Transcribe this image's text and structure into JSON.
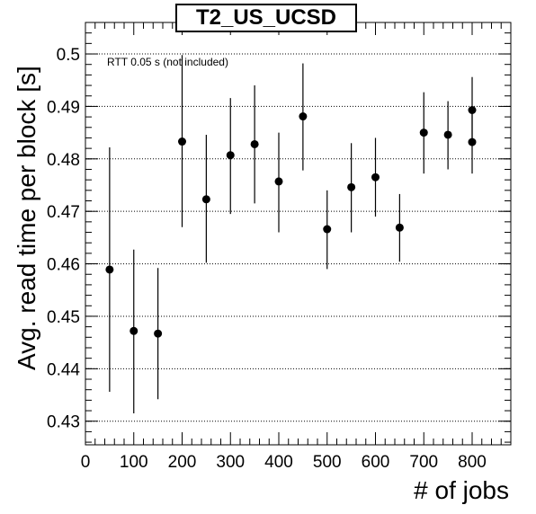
{
  "chart_data": {
    "type": "scatter",
    "title": "T2_US_UCSD",
    "xlabel": "# of jobs",
    "ylabel": "Avg. read time per block [s]",
    "annotation": "RTT 0.05 s (not included)",
    "xlim": [
      0,
      880
    ],
    "ylim": [
      0.4255,
      0.506
    ],
    "xticks": [
      0,
      100,
      200,
      300,
      400,
      500,
      600,
      700,
      800
    ],
    "yticks": [
      0.43,
      0.44,
      0.45,
      0.46,
      0.47,
      0.48,
      0.49,
      0.5
    ],
    "ytick_labels": [
      "0.43",
      "0.44",
      "0.45",
      "0.46",
      "0.47",
      "0.48",
      "0.49",
      "0.5"
    ],
    "grid": "horizontal dotted",
    "series": [
      {
        "x": [
          50,
          100,
          150,
          200,
          250,
          300,
          350,
          400,
          450,
          500,
          550,
          600,
          650,
          700,
          750,
          800,
          800
        ],
        "y": [
          0.4589,
          0.4472,
          0.4467,
          0.4833,
          0.4723,
          0.4807,
          0.4828,
          0.4757,
          0.4881,
          0.4666,
          0.4746,
          0.4765,
          0.4669,
          0.485,
          0.4846,
          0.4893,
          0.4832
        ],
        "ylow": [
          0.4356,
          0.4315,
          0.4342,
          0.467,
          0.4602,
          0.4695,
          0.4715,
          0.466,
          0.4778,
          0.459,
          0.466,
          0.469,
          0.4604,
          0.4772,
          0.478,
          0.483,
          0.4772
        ],
        "yhigh": [
          0.4822,
          0.4627,
          0.4592,
          0.4998,
          0.4846,
          0.4916,
          0.494,
          0.485,
          0.4982,
          0.474,
          0.483,
          0.484,
          0.4733,
          0.4927,
          0.491,
          0.4956,
          0.489
        ]
      }
    ]
  }
}
